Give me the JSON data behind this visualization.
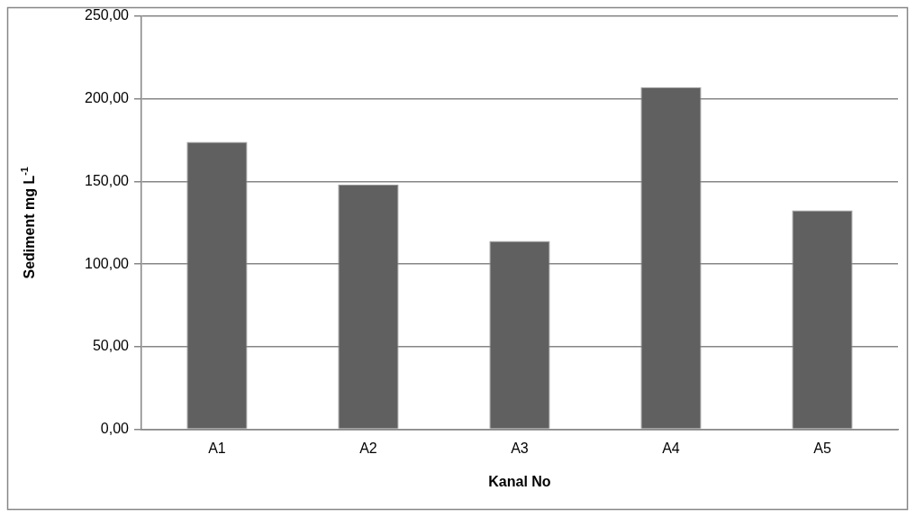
{
  "chart_data": {
    "type": "bar",
    "xlabel": "Kanal No",
    "ylabel": "Sediment mg L$^{-1}$",
    "categories": [
      "A1",
      "A2",
      "A3",
      "A4",
      "A5"
    ],
    "values": [
      174,
      148,
      114,
      207,
      132.5
    ],
    "color": "#606060",
    "ylim": [
      0,
      250
    ],
    "yticks": [
      {
        "value": 0,
        "label": "0,00"
      },
      {
        "value": 50,
        "label": "50,00"
      },
      {
        "value": 100,
        "label": "100,00"
      },
      {
        "value": 150,
        "label": "150,00"
      },
      {
        "value": 200,
        "label": "200,00"
      },
      {
        "value": 250,
        "label": "250,00"
      }
    ],
    "grid": "y",
    "legend": false
  }
}
